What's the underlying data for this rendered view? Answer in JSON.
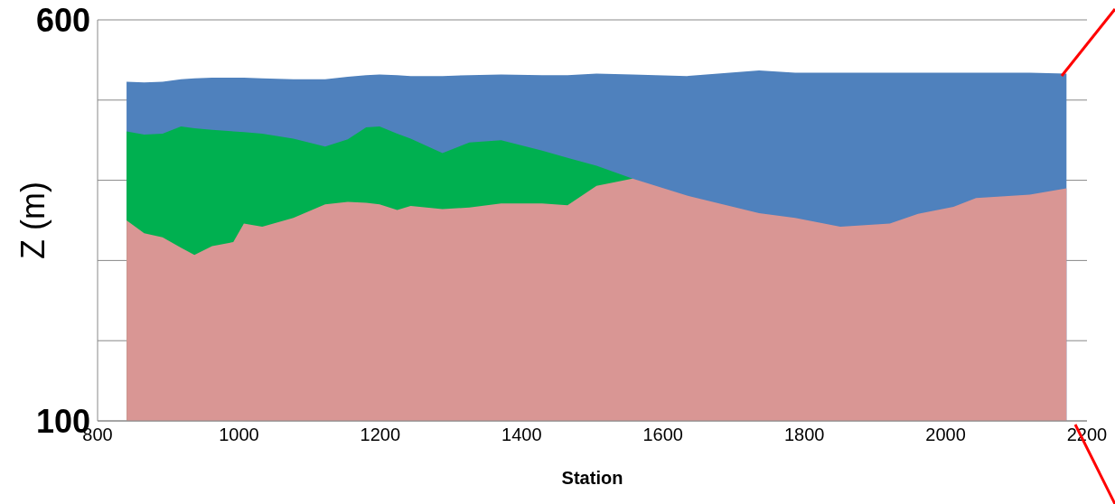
{
  "chart_data": {
    "type": "area",
    "xlabel": "Station",
    "ylabel": "Z (m)",
    "grid": "y",
    "x": [
      841,
      866,
      892,
      918,
      937,
      962,
      992,
      1007,
      1033,
      1077,
      1122,
      1154,
      1180,
      1199,
      1224,
      1243,
      1288,
      1326,
      1371,
      1429,
      1465,
      1506,
      1557,
      1634,
      1736,
      1787,
      1851,
      1921,
      1960,
      2011,
      2043,
      2119,
      2171
    ],
    "series": [
      {
        "color": "#4f81bd",
        "values": [
          523,
          522,
          523,
          526,
          527,
          528,
          528,
          528,
          527,
          526,
          526,
          529,
          531,
          532,
          531,
          530,
          530,
          531,
          532,
          531,
          531,
          533,
          532,
          530,
          537,
          534,
          534,
          534,
          534,
          534,
          534,
          534,
          533
        ]
      },
      {
        "color": "#00b050",
        "values": [
          461,
          457,
          458,
          467,
          465,
          463,
          461,
          460,
          458,
          452,
          442,
          451,
          466,
          467,
          458,
          452,
          434,
          447,
          450,
          437,
          428,
          418,
          402,
          null,
          null,
          null,
          null,
          null,
          null,
          null,
          null,
          null,
          null
        ]
      },
      {
        "color": "#d99694",
        "values": [
          350,
          334,
          329,
          316,
          307,
          318,
          323,
          346,
          342,
          353,
          370,
          373,
          372,
          370,
          363,
          368,
          364,
          366,
          371,
          371,
          369,
          393,
          402,
          381,
          359,
          353,
          342,
          346,
          358,
          367,
          378,
          382,
          390
        ]
      }
    ],
    "xlim": [
      800,
      2200
    ],
    "xticks": [
      800,
      1000,
      1200,
      1400,
      1600,
      1800,
      2000,
      2200
    ],
    "ylim": [
      100,
      600
    ],
    "yticks": [
      100,
      {
        "value": 200,
        "label": null
      },
      {
        "value": 300,
        "label": null
      },
      {
        "value": 400,
        "label": null
      },
      {
        "value": 500,
        "label": null
      },
      600
    ]
  }
}
